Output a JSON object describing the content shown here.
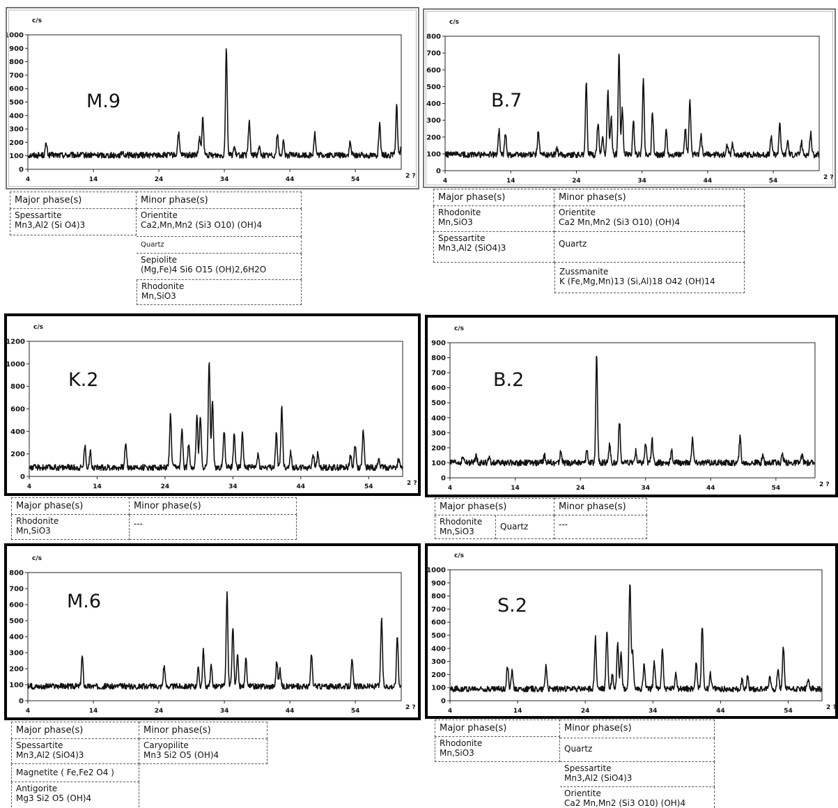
{
  "chart_data": [
    {
      "type": "line",
      "sample": "M.9",
      "ylabel": "c/s",
      "xlabel": "2θ",
      "ylim": [
        0,
        1000
      ],
      "yticks": [
        0,
        100,
        200,
        300,
        400,
        500,
        600,
        700,
        800,
        900,
        1000
      ],
      "xlim": [
        4,
        61
      ],
      "xticks": [
        4,
        14,
        24,
        34,
        44,
        54
      ],
      "baseline": 105,
      "peaks": [
        [
          6.8,
          190
        ],
        [
          18.5,
          130
        ],
        [
          27,
          270
        ],
        [
          30.2,
          230
        ],
        [
          30.7,
          380
        ],
        [
          34.3,
          910
        ],
        [
          35.5,
          160
        ],
        [
          37.8,
          360
        ],
        [
          39.3,
          170
        ],
        [
          42.1,
          260
        ],
        [
          43,
          200
        ],
        [
          47.8,
          270
        ],
        [
          53.2,
          200
        ],
        [
          57.7,
          330
        ],
        [
          60.3,
          490
        ],
        [
          61,
          150
        ]
      ],
      "table": {
        "major": [
          {
            "name": "Spessartite",
            "formula": "Mn3,Al2 (Si O4)3"
          }
        ],
        "minor": [
          {
            "name": "Orientite",
            "formula": "Ca2,Mn,Mn2 (Si3 O10) (OH)4"
          },
          {
            "name": "Quartz",
            "formula": ""
          },
          {
            "name": "Sepiolite",
            "formula": "(Mg,Fe)4 Si6 O15 (OH)2,6H2O"
          },
          {
            "name": "Rhodonite",
            "formula": "Mn,SiO3"
          }
        ]
      }
    },
    {
      "type": "line",
      "sample": "B.7",
      "ylabel": "c/s",
      "xlabel": "2θ",
      "ylim": [
        0,
        800
      ],
      "yticks": [
        0,
        100,
        200,
        300,
        400,
        500,
        600,
        700,
        800
      ],
      "xlim": [
        4,
        61
      ],
      "xticks": [
        4,
        14,
        24,
        34,
        44,
        54
      ],
      "baseline": 95,
      "peaks": [
        [
          12.2,
          240
        ],
        [
          13.2,
          220
        ],
        [
          18.2,
          240
        ],
        [
          21,
          130
        ],
        [
          25.5,
          520
        ],
        [
          27.3,
          290
        ],
        [
          28,
          200
        ],
        [
          28.8,
          470
        ],
        [
          29.3,
          320
        ],
        [
          30.5,
          690
        ],
        [
          31,
          370
        ],
        [
          32.7,
          290
        ],
        [
          34.2,
          550
        ],
        [
          35.6,
          340
        ],
        [
          37.7,
          240
        ],
        [
          40.6,
          250
        ],
        [
          41.3,
          410
        ],
        [
          43,
          210
        ],
        [
          47,
          160
        ],
        [
          47.8,
          160
        ],
        [
          53.7,
          200
        ],
        [
          55,
          290
        ],
        [
          56.2,
          180
        ],
        [
          58.3,
          170
        ],
        [
          59.7,
          230
        ]
      ],
      "table": {
        "major": [
          {
            "name": "Rhodonite",
            "formula": "Mn,SiO3"
          },
          {
            "name": "Spessartite",
            "formula": "Mn3,Al2 (SiO4)3"
          }
        ],
        "minor": [
          {
            "name": "Orientite",
            "formula": "Ca2 Mn,Mn2 (Si3 O10) (OH)4"
          },
          {
            "name": "Quartz",
            "formula": ""
          },
          {
            "name": "Zussmanite",
            "formula": "K (Fe,Mg,Mn)13 (Si,Al)18 O42 (OH)14"
          }
        ]
      }
    },
    {
      "type": "line",
      "sample": "K.2",
      "ylabel": "c/s",
      "xlabel": "2θ",
      "ylim": [
        0,
        1200
      ],
      "yticks": [
        0,
        200,
        400,
        600,
        800,
        1000,
        1200
      ],
      "xlim": [
        4,
        59
      ],
      "xticks": [
        4,
        14,
        24,
        34,
        44,
        54
      ],
      "baseline": 80,
      "peaks": [
        [
          12.2,
          270
        ],
        [
          13,
          220
        ],
        [
          18.2,
          290
        ],
        [
          24.8,
          540
        ],
        [
          26.5,
          420
        ],
        [
          27.5,
          300
        ],
        [
          28.7,
          530
        ],
        [
          29.2,
          540
        ],
        [
          30.5,
          1030
        ],
        [
          31,
          670
        ],
        [
          32.7,
          420
        ],
        [
          34.2,
          380
        ],
        [
          35.4,
          390
        ],
        [
          37.7,
          200
        ],
        [
          40.4,
          380
        ],
        [
          41.2,
          610
        ],
        [
          42.5,
          210
        ],
        [
          45.8,
          200
        ],
        [
          46.5,
          200
        ],
        [
          51.3,
          190
        ],
        [
          52,
          290
        ],
        [
          53.2,
          400
        ],
        [
          55.5,
          160
        ],
        [
          58.4,
          150
        ]
      ],
      "table": {
        "major": [
          {
            "name": "Rhodonite",
            "formula": "Mn,SiO3"
          }
        ],
        "minor": [
          {
            "name": "---",
            "formula": ""
          }
        ]
      }
    },
    {
      "type": "line",
      "sample": "B.2",
      "ylabel": "c/s",
      "xlabel": "2θ",
      "ylim": [
        0,
        900
      ],
      "yticks": [
        0,
        100,
        200,
        300,
        400,
        500,
        600,
        700,
        800,
        900
      ],
      "xlim": [
        4,
        60
      ],
      "xticks": [
        4,
        14,
        24,
        34,
        44,
        54
      ],
      "baseline": 100,
      "peaks": [
        [
          6,
          140
        ],
        [
          8,
          150
        ],
        [
          10,
          130
        ],
        [
          18.5,
          150
        ],
        [
          21,
          180
        ],
        [
          25,
          190
        ],
        [
          26.5,
          820
        ],
        [
          28.5,
          220
        ],
        [
          30,
          380
        ],
        [
          32.5,
          180
        ],
        [
          34,
          230
        ],
        [
          35,
          260
        ],
        [
          38,
          180
        ],
        [
          41.2,
          270
        ],
        [
          48.5,
          270
        ],
        [
          52,
          150
        ],
        [
          55,
          160
        ],
        [
          58,
          150
        ]
      ],
      "table": {
        "major": [
          {
            "name": "Rhodonite",
            "formula": "Mn,SiO3"
          },
          {
            "name": "Quartz",
            "formula": ""
          }
        ],
        "minor": [
          {
            "name": "---",
            "formula": ""
          }
        ]
      }
    },
    {
      "type": "line",
      "sample": "M.6",
      "ylabel": "c/s",
      "xlabel": "2θ",
      "ylim": [
        0,
        800
      ],
      "yticks": [
        0,
        100,
        200,
        300,
        400,
        500,
        600,
        700,
        800
      ],
      "xlim": [
        4,
        61
      ],
      "xticks": [
        4,
        14,
        24,
        34,
        44,
        54
      ],
      "baseline": 90,
      "peaks": [
        [
          12.3,
          280
        ],
        [
          24.8,
          220
        ],
        [
          30,
          200
        ],
        [
          30.8,
          310
        ],
        [
          32,
          220
        ],
        [
          34.4,
          670
        ],
        [
          35.3,
          460
        ],
        [
          36,
          280
        ],
        [
          37.3,
          260
        ],
        [
          42,
          250
        ],
        [
          42.5,
          190
        ],
        [
          47.3,
          290
        ],
        [
          53.5,
          250
        ],
        [
          58,
          520
        ],
        [
          60.4,
          410
        ]
      ],
      "table": {
        "major": [
          {
            "name": "Spessartite",
            "formula": "Mn3,Al2 (SiO4)3"
          },
          {
            "name": "Magnetite",
            "formula": "( Fe,Fe2 O4 )"
          },
          {
            "name": "Antigorite",
            "formula": "Mg3 Si2 O5 (OH)4"
          }
        ],
        "minor": [
          {
            "name": "Caryopilite",
            "formula": "Mn3 Si2 O5 (OH)4"
          }
        ]
      }
    },
    {
      "type": "line",
      "sample": "S.2",
      "ylabel": "c/s",
      "xlabel": "2θ",
      "ylim": [
        0,
        1000
      ],
      "yticks": [
        0,
        100,
        200,
        300,
        400,
        500,
        600,
        700,
        800,
        900,
        1000
      ],
      "xlim": [
        4,
        59
      ],
      "xticks": [
        4,
        14,
        24,
        34,
        44,
        54
      ],
      "baseline": 90,
      "peaks": [
        [
          12.5,
          270
        ],
        [
          13.2,
          230
        ],
        [
          18.2,
          280
        ],
        [
          25.5,
          480
        ],
        [
          27.2,
          540
        ],
        [
          28,
          200
        ],
        [
          28.8,
          450
        ],
        [
          29.3,
          380
        ],
        [
          30.6,
          910
        ],
        [
          31,
          390
        ],
        [
          32.7,
          270
        ],
        [
          34.2,
          300
        ],
        [
          35.4,
          410
        ],
        [
          37.4,
          220
        ],
        [
          40.4,
          300
        ],
        [
          41.3,
          580
        ],
        [
          42.5,
          210
        ],
        [
          47.2,
          160
        ],
        [
          48,
          180
        ],
        [
          51.3,
          190
        ],
        [
          52.5,
          230
        ],
        [
          53.3,
          410
        ],
        [
          57,
          160
        ]
      ],
      "table": {
        "major": [
          {
            "name": "Rhodonite",
            "formula": "Mn,SiO3"
          }
        ],
        "minor": [
          {
            "name": "Quartz",
            "formula": ""
          },
          {
            "name": "Spessartite",
            "formula": "Mn3,Al2 (SiO4)3"
          },
          {
            "name": "Orientite",
            "formula": "Ca2 Mn,Mn2 (Si3 O10) (OH)4"
          }
        ]
      }
    }
  ],
  "labels": {
    "major_header": "Major phase(s)",
    "minor_header": "Minor phase(s)",
    "ylabel": "c/s",
    "xlabel": "2 ?"
  }
}
